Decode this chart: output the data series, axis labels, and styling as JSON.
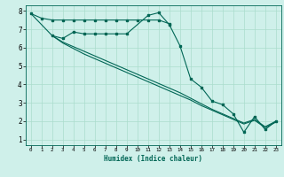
{
  "xlabel": "Humidex (Indice chaleur)",
  "bg_color": "#cff0ea",
  "line_color": "#006655",
  "grid_color": "#aaddcc",
  "xlim": [
    -0.5,
    23.5
  ],
  "ylim": [
    0.7,
    8.3
  ],
  "xticks": [
    0,
    1,
    2,
    3,
    4,
    5,
    6,
    7,
    8,
    9,
    10,
    11,
    12,
    13,
    14,
    15,
    16,
    17,
    18,
    19,
    20,
    21,
    22,
    23
  ],
  "yticks": [
    1,
    2,
    3,
    4,
    5,
    6,
    7,
    8
  ],
  "line1_x": [
    0,
    1,
    2,
    3,
    4,
    5,
    6,
    7,
    8,
    9,
    10,
    11,
    12,
    13
  ],
  "line1_y": [
    7.85,
    7.6,
    7.5,
    7.5,
    7.5,
    7.5,
    7.5,
    7.5,
    7.5,
    7.5,
    7.5,
    7.5,
    7.5,
    7.3
  ],
  "line2_x": [
    2,
    3,
    4,
    5,
    6,
    7,
    8,
    9,
    11,
    12,
    13,
    14,
    15,
    16,
    17,
    18,
    19,
    20,
    21,
    22,
    23
  ],
  "line2_y": [
    6.65,
    6.5,
    6.85,
    6.75,
    6.75,
    6.75,
    6.75,
    6.75,
    7.75,
    7.9,
    7.25,
    6.1,
    4.3,
    3.85,
    3.1,
    2.9,
    2.4,
    1.4,
    2.25,
    1.55,
    2.0
  ],
  "line3_x": [
    0,
    2,
    3,
    4,
    5,
    6,
    7,
    8,
    9,
    10,
    11,
    12,
    13,
    14,
    15,
    16,
    17,
    18,
    19,
    20,
    21,
    22,
    23
  ],
  "line3_y": [
    7.85,
    6.65,
    6.3,
    6.05,
    5.8,
    5.55,
    5.3,
    5.05,
    4.8,
    4.55,
    4.3,
    4.05,
    3.8,
    3.55,
    3.25,
    2.95,
    2.65,
    2.4,
    2.15,
    1.9,
    2.1,
    1.7,
    2.0
  ],
  "line4_x": [
    2,
    3,
    4,
    5,
    6,
    7,
    8,
    9,
    10,
    11,
    12,
    13,
    14,
    15,
    16,
    17,
    18,
    19,
    20,
    21,
    22,
    23
  ],
  "line4_y": [
    6.65,
    6.25,
    5.95,
    5.65,
    5.4,
    5.15,
    4.9,
    4.65,
    4.4,
    4.15,
    3.9,
    3.65,
    3.4,
    3.15,
    2.85,
    2.6,
    2.35,
    2.1,
    1.85,
    2.05,
    1.65,
    1.95
  ]
}
